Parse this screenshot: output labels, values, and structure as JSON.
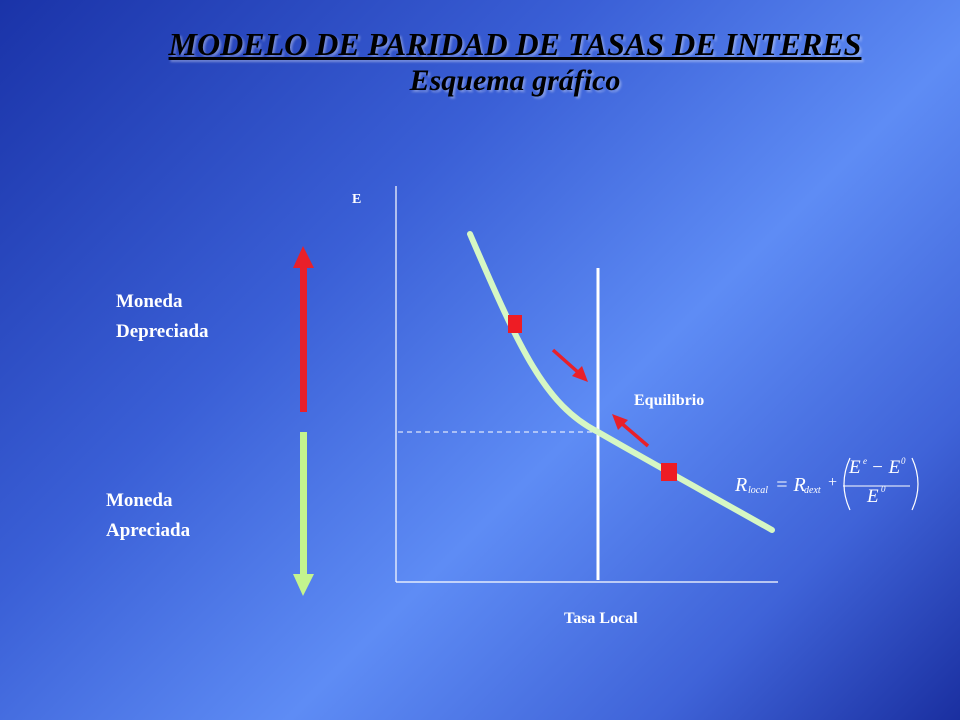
{
  "header": {
    "title": "MODELO DE PARIDAD DE TASAS DE INTERES",
    "subtitle": "Esquema gráfico"
  },
  "labels": {
    "depreciated_line1": "Moneda",
    "depreciated_line2": "Depreciada",
    "appreciated_line1": "Moneda",
    "appreciated_line2": "Apreciada",
    "y_axis": "E",
    "x_axis": "Tasa Local",
    "equilibrium": "Equilibrio"
  },
  "formula": {
    "lhs": "R",
    "lhs_sub": "local",
    "eq": "= R",
    "rhs_sub": "dext",
    "plus": "+",
    "num": "E",
    "num_sup": "e",
    "minus": "− E",
    "num_sup2": "0",
    "den": "E",
    "den_sup": "0"
  },
  "colors": {
    "up_arrow": "#e8202a",
    "down_arrow": "#c4f48e",
    "curve": "#d6f7c4",
    "markers": "#ee1c24",
    "axes": "#ffffff"
  }
}
